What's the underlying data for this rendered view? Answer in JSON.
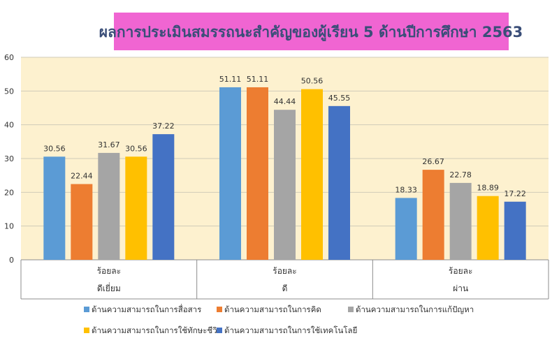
{
  "chart_data": {
    "type": "bar",
    "title": "ผลการประเมินสมรรถนะสำคัญของผู้เรียน 5 ด้านปีการศึกษา 2563",
    "categories": [
      "ดีเยี่ยม",
      "ดี",
      "ผ่าน"
    ],
    "category_top_labels": [
      "ร้อยละ",
      "ร้อยละ",
      "ร้อยละ"
    ],
    "ylim": [
      0,
      60
    ],
    "yticks": [
      0,
      10,
      20,
      30,
      40,
      50,
      60
    ],
    "grid": true,
    "legend_position": "bottom",
    "series": [
      {
        "name": "ด้านความสามารถในการสื่อสาร",
        "color": "#5B9BD5",
        "values": [
          30.56,
          51.11,
          18.33
        ]
      },
      {
        "name": "ด้านความสามารถในการคิด",
        "color": "#ED7D31",
        "values": [
          22.44,
          51.11,
          26.67
        ]
      },
      {
        "name": "ด้านความสามารถในการแก้ปัญหา",
        "color": "#A5A5A5",
        "values": [
          31.67,
          44.44,
          22.78
        ]
      },
      {
        "name": "ด้านความสามารถในการใช้ทักษะชีวิต",
        "color": "#FFC000",
        "values": [
          30.56,
          50.56,
          18.89
        ]
      },
      {
        "name": "ด้านความสามารถในการใช้เทคโนโลยี",
        "color": "#4472C4",
        "values": [
          37.22,
          45.55,
          17.22
        ]
      }
    ],
    "colors": {
      "plot_background": "#FDF1CF",
      "title_background": "#F065D2",
      "title_text": "#3A4E78",
      "grid": "#D0CBB8",
      "axis": "#8C8C8C",
      "label_text": "#333333"
    }
  }
}
